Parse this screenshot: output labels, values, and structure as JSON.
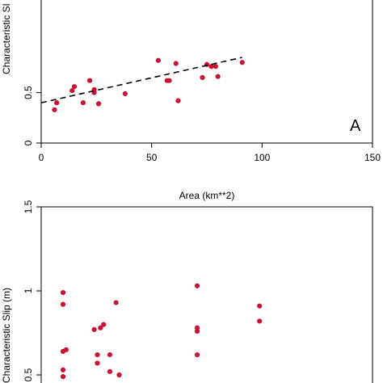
{
  "chart_data": [
    {
      "type": "scatter",
      "title": "",
      "panel_label": "A",
      "xlabel": "Area (km**2)",
      "ylabel": "Characteristic Sl",
      "xlim": [
        0,
        150
      ],
      "ylim": [
        0,
        1.5
      ],
      "x_ticks": [
        "0",
        "50",
        "100",
        "150"
      ],
      "y_ticks": [
        "0",
        "0.5"
      ],
      "point_color": "#cc1133",
      "series": [
        {
          "points": [
            [
              6,
              0.33
            ],
            [
              7,
              0.4
            ],
            [
              14,
              0.52
            ],
            [
              15,
              0.56
            ],
            [
              19,
              0.4
            ],
            [
              22,
              0.62
            ],
            [
              24,
              0.53
            ],
            [
              24,
              0.5
            ],
            [
              26,
              0.39
            ],
            [
              38,
              0.49
            ],
            [
              53,
              0.82
            ],
            [
              57,
              0.62
            ],
            [
              58,
              0.62
            ],
            [
              61,
              0.79
            ],
            [
              62,
              0.42
            ],
            [
              73,
              0.65
            ],
            [
              75,
              0.78
            ],
            [
              77,
              0.76
            ],
            [
              79,
              0.76
            ],
            [
              80,
              0.66
            ],
            [
              91,
              0.8
            ]
          ]
        }
      ],
      "regression_line": {
        "style": "dashed",
        "x": [
          0,
          91
        ],
        "y": [
          0.4,
          0.85
        ]
      }
    },
    {
      "type": "scatter",
      "title": "",
      "xlabel": "",
      "ylabel": "Characteristic Slip (m)",
      "ylim": [
        0.5,
        1.5
      ],
      "y_ticks": [
        "0.5",
        "1",
        "1.5"
      ],
      "point_color": "#cc1133",
      "series": [
        {
          "points": [
            [
              7,
              0.53
            ],
            [
              7,
              0.49
            ],
            [
              7,
              0.64
            ],
            [
              7,
              0.92
            ],
            [
              7,
              0.99
            ],
            [
              8,
              0.65
            ],
            [
              17,
              0.77
            ],
            [
              18,
              0.57
            ],
            [
              18,
              0.62
            ],
            [
              19,
              0.78
            ],
            [
              20,
              0.8
            ],
            [
              22,
              0.62
            ],
            [
              22,
              0.52
            ],
            [
              24,
              0.93
            ],
            [
              25,
              0.5
            ],
            [
              50,
              0.76
            ],
            [
              50,
              0.78
            ],
            [
              50,
              0.62
            ],
            [
              50,
              1.03
            ],
            [
              70,
              0.91
            ],
            [
              70,
              0.82
            ]
          ]
        }
      ]
    }
  ]
}
